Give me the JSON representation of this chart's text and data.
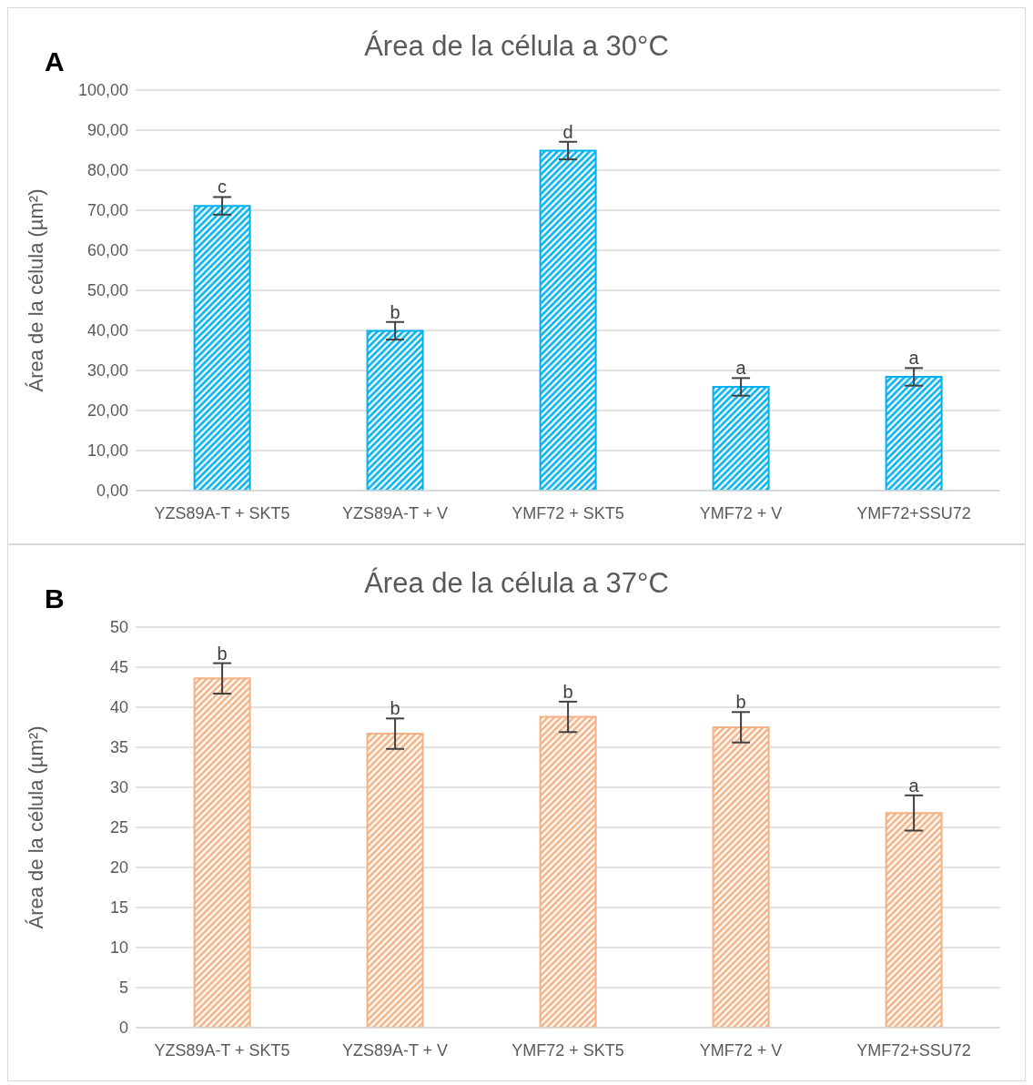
{
  "chart_data": [
    {
      "type": "bar",
      "title": "Área de la célula a 30°C",
      "ylabel": "Área de la célula (µm²)",
      "categories": [
        "YZS89A-T + SKT5",
        "YZS89A-T + V",
        "YMF72 + SKT5",
        "YMF72 + V",
        "YMF72+SSU72"
      ],
      "values": [
        71.1,
        39.9,
        84.9,
        25.9,
        28.4
      ],
      "errors": [
        2.2,
        2.2,
        2.2,
        2.2,
        2.2
      ],
      "color": "#00b0f0",
      "ylim": [
        0,
        100
      ],
      "yticks": [
        {
          "value": 0,
          "label": "0,00"
        },
        {
          "value": 10,
          "label": "10,00"
        },
        {
          "value": 20,
          "label": "20,00"
        },
        {
          "value": 30,
          "label": "30,00"
        },
        {
          "value": 40,
          "label": "40,00"
        },
        {
          "value": 50,
          "label": "50,00"
        },
        {
          "value": 60,
          "label": "60,00"
        },
        {
          "value": 70,
          "label": "70,00"
        },
        {
          "value": 80,
          "label": "80,00"
        },
        {
          "value": 90,
          "label": "90,00"
        },
        {
          "value": 100,
          "label": "100,00"
        }
      ],
      "grid": "y",
      "annotations": [
        "A",
        {
          "text": "c",
          "x": "YZS89A-T + SKT5",
          "y": 73.3
        },
        {
          "text": "b",
          "x": "YZS89A-T + V",
          "y": 42.1
        },
        {
          "text": "d",
          "x": "YMF72 + SKT5",
          "y": 87.1
        },
        {
          "text": "a",
          "x": "YMF72 + V",
          "y": 28.1
        },
        {
          "text": "a",
          "x": "YMF72+SSU72",
          "y": 30.6
        }
      ]
    },
    {
      "type": "bar",
      "title": "Área de la célula a 37°C",
      "ylabel": "Área de la célula (µm²)",
      "categories": [
        "YZS89A-T + SKT5",
        "YZS89A-T + V",
        "YMF72 + SKT5",
        "YMF72 + V",
        "YMF72+SSU72"
      ],
      "values": [
        43.6,
        36.7,
        38.8,
        37.5,
        26.8
      ],
      "errors": [
        1.9,
        1.9,
        1.9,
        1.9,
        2.2
      ],
      "color": "#f4b183",
      "ylim": [
        0,
        50
      ],
      "yticks": [
        0,
        5,
        10,
        15,
        20,
        25,
        30,
        35,
        40,
        45,
        50
      ],
      "grid": "y",
      "annotations": [
        "B",
        {
          "text": "b",
          "x": "YZS89A-T + SKT5",
          "y": 45.5
        },
        {
          "text": "b",
          "x": "YZS89A-T + V",
          "y": 38.6
        },
        {
          "text": "b",
          "x": "YMF72 + SKT5",
          "y": 40.7
        },
        {
          "text": "b",
          "x": "YMF72 + V",
          "y": 39.4
        },
        {
          "text": "a",
          "x": "YMF72+SSU72",
          "y": 29.0
        }
      ]
    }
  ]
}
